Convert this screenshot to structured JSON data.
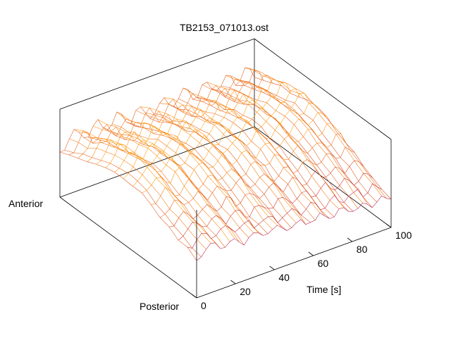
{
  "page": {
    "title": "TB2153_071013.ost"
  },
  "chart_data": {
    "type": "surface-3d",
    "title": "TB2153_071013.ost",
    "time_axis": {
      "label": "Time [s]",
      "range": [
        0,
        100
      ],
      "ticks": [
        "0",
        "20",
        "40",
        "60",
        "80",
        "100"
      ],
      "tick_values": [
        0,
        20,
        40,
        60,
        80,
        100
      ]
    },
    "position_axis": {
      "labels": [
        "Posterior",
        "Anterior"
      ]
    },
    "colormap": [
      "#8a1fa0",
      "#c41e2a",
      "#ff8c00",
      "#ffbe00"
    ],
    "surface": {
      "time_count": 42,
      "position_count": 16,
      "oscillation_peak_times_s": [
        8,
        19,
        30,
        41,
        53,
        64,
        75,
        86,
        96
      ]
    }
  }
}
